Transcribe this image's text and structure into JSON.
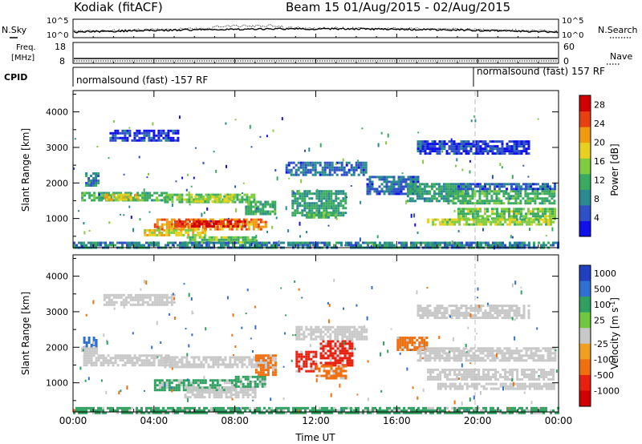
{
  "header": {
    "site": "Kodiak (fitACF)",
    "beam_time": "Beam 15 01/Aug/2015 - 02/Aug/2015"
  },
  "panels": {
    "noise": {
      "left_label": "N.Sky",
      "right_label": "N.Search",
      "ticks_left": [
        "10^5",
        "10^0"
      ],
      "ticks_right": [
        "10^5",
        "10^0"
      ]
    },
    "freq": {
      "left_label_1": "Freq.",
      "left_label_2": "[MHz]",
      "ticks_left": [
        "18",
        "8"
      ],
      "right_label": "Nave",
      "ticks_right": [
        "60",
        "0"
      ]
    },
    "cpid": {
      "left_label": "CPID",
      "segments": [
        "normalsound (fast) -157 RF",
        "normalsound (fast) 157 RF"
      ]
    }
  },
  "chart_data": [
    {
      "type": "heatmap",
      "title": "",
      "xlabel": "",
      "ylabel": "Slant Range [km]",
      "x_ticks": [
        "00:00",
        "04:00",
        "08:00",
        "12:00",
        "16:00",
        "20:00",
        "00:00"
      ],
      "y_ticks": [
        1000,
        2000,
        3000,
        4000
      ],
      "xlim": [
        0,
        24
      ],
      "ylim": [
        180,
        4600
      ],
      "colorbar": {
        "label": "Power [dB]",
        "ticks": [
          4,
          8,
          12,
          16,
          20,
          24,
          28
        ],
        "range": [
          0,
          30
        ],
        "colors": [
          "#1010e8",
          "#3050c8",
          "#2a8a90",
          "#3aaa60",
          "#80cc40",
          "#e8d020",
          "#f09a10",
          "#e84010",
          "#d00000"
        ]
      },
      "regions": [
        {
          "t0": 0.4,
          "t1": 4.8,
          "r0": 1500,
          "r1": 1750,
          "level": 12
        },
        {
          "t0": 4.5,
          "t1": 9.0,
          "r0": 1450,
          "r1": 1700,
          "level": 14
        },
        {
          "t0": 1.5,
          "t1": 3.2,
          "r0": 1550,
          "r1": 1700,
          "level": 18
        },
        {
          "t0": 6.0,
          "t1": 8.0,
          "r0": 1500,
          "r1": 1650,
          "level": 16
        },
        {
          "t0": 8.5,
          "t1": 10.0,
          "r0": 1100,
          "r1": 1500,
          "level": 12
        },
        {
          "t0": 0.6,
          "t1": 1.2,
          "r0": 1900,
          "r1": 2300,
          "level": 8
        },
        {
          "t0": 4.0,
          "t1": 9.5,
          "r0": 700,
          "r1": 1000,
          "level": 22
        },
        {
          "t0": 5.0,
          "t1": 8.5,
          "r0": 750,
          "r1": 950,
          "level": 26
        },
        {
          "t0": 3.5,
          "t1": 6.5,
          "r0": 500,
          "r1": 700,
          "level": 18
        },
        {
          "t0": 5.5,
          "t1": 9.0,
          "r0": 300,
          "r1": 500,
          "level": 14
        },
        {
          "t0": 10.8,
          "t1": 13.5,
          "r0": 1100,
          "r1": 1800,
          "level": 10
        },
        {
          "t0": 11.5,
          "t1": 13.0,
          "r0": 1000,
          "r1": 1200,
          "level": 12
        },
        {
          "t0": 10.5,
          "t1": 14.5,
          "r0": 2200,
          "r1": 2600,
          "level": 6
        },
        {
          "t0": 14.5,
          "t1": 17.0,
          "r0": 1700,
          "r1": 2200,
          "level": 6
        },
        {
          "t0": 16.5,
          "t1": 19.5,
          "r0": 1500,
          "r1": 2000,
          "level": 10
        },
        {
          "t0": 18.5,
          "t1": 23.8,
          "r0": 1400,
          "r1": 1800,
          "level": 12
        },
        {
          "t0": 19.0,
          "t1": 23.8,
          "r0": 1000,
          "r1": 1300,
          "level": 14
        },
        {
          "t0": 17.5,
          "t1": 23.8,
          "r0": 800,
          "r1": 1000,
          "level": 16
        },
        {
          "t0": 19.0,
          "t1": 23.8,
          "r0": 1800,
          "r1": 2000,
          "level": 6
        },
        {
          "t0": 0.0,
          "t1": 24.0,
          "r0": 180,
          "r1": 350,
          "level": 8
        },
        {
          "t0": 1.8,
          "t1": 5.2,
          "r0": 3200,
          "r1": 3500,
          "level": 4
        },
        {
          "t0": 17.0,
          "t1": 22.5,
          "r0": 2800,
          "r1": 3200,
          "level": 4
        }
      ]
    },
    {
      "type": "heatmap",
      "title": "",
      "xlabel": "Time UT",
      "ylabel": "Slant Range [km]",
      "x_ticks": [
        "00:00",
        "04:00",
        "08:00",
        "12:00",
        "16:00",
        "20:00",
        "00:00"
      ],
      "y_ticks": [
        1000,
        2000,
        3000,
        4000
      ],
      "xlim": [
        0,
        24
      ],
      "ylim": [
        180,
        4600
      ],
      "colorbar": {
        "label": "Velocity [m s^-1]",
        "tick_labels": [
          "1000",
          "500",
          "100",
          "25",
          "-25",
          "-100",
          "-500",
          "-1000"
        ],
        "colors": [
          "#2040c0",
          "#3070d0",
          "#30a060",
          "#70c840",
          "#c8c8c8",
          "#f0a020",
          "#f07010",
          "#e82010",
          "#d00000"
        ]
      },
      "regions": [
        {
          "t0": 0.5,
          "t1": 4.8,
          "r0": 1500,
          "r1": 1800,
          "class": "-25"
        },
        {
          "t0": 4.5,
          "t1": 9.5,
          "r0": 1450,
          "r1": 1750,
          "class": "-25"
        },
        {
          "t0": 0.5,
          "t1": 1.1,
          "r0": 2000,
          "r1": 2300,
          "class": "500"
        },
        {
          "t0": 0.4,
          "t1": 1.2,
          "r0": 1800,
          "r1": 2000,
          "class": "-25"
        },
        {
          "t0": 4.0,
          "t1": 8.0,
          "r0": 800,
          "r1": 1100,
          "class": "100"
        },
        {
          "t0": 5.5,
          "t1": 9.0,
          "r0": 600,
          "r1": 900,
          "class": "-25"
        },
        {
          "t0": 8.0,
          "t1": 9.5,
          "r0": 900,
          "r1": 1200,
          "class": "100"
        },
        {
          "t0": 9.0,
          "t1": 10.0,
          "r0": 1200,
          "r1": 1800,
          "class": "-100"
        },
        {
          "t0": 11.0,
          "t1": 12.0,
          "r0": 1300,
          "r1": 1900,
          "class": "-500"
        },
        {
          "t0": 12.2,
          "t1": 13.8,
          "r0": 1500,
          "r1": 2200,
          "class": "-500"
        },
        {
          "t0": 12.0,
          "t1": 13.5,
          "r0": 1100,
          "r1": 1500,
          "class": "-100"
        },
        {
          "t0": 11.0,
          "t1": 14.5,
          "r0": 2200,
          "r1": 2600,
          "class": "-25"
        },
        {
          "t0": 16.0,
          "t1": 17.5,
          "r0": 1900,
          "r1": 2300,
          "class": "-100"
        },
        {
          "t0": 17.0,
          "t1": 23.8,
          "r0": 1600,
          "r1": 2000,
          "class": "-25"
        },
        {
          "t0": 17.5,
          "t1": 23.8,
          "r0": 1100,
          "r1": 1400,
          "class": "-25"
        },
        {
          "t0": 18.0,
          "t1": 23.8,
          "r0": 800,
          "r1": 1000,
          "class": "-25"
        },
        {
          "t0": 0.0,
          "t1": 24.0,
          "r0": 180,
          "r1": 320,
          "class": "100"
        },
        {
          "t0": 1.5,
          "t1": 5.0,
          "r0": 3200,
          "r1": 3500,
          "class": "25"
        },
        {
          "t0": 17.0,
          "t1": 22.5,
          "r0": 2800,
          "r1": 3200,
          "class": "25"
        }
      ]
    }
  ]
}
